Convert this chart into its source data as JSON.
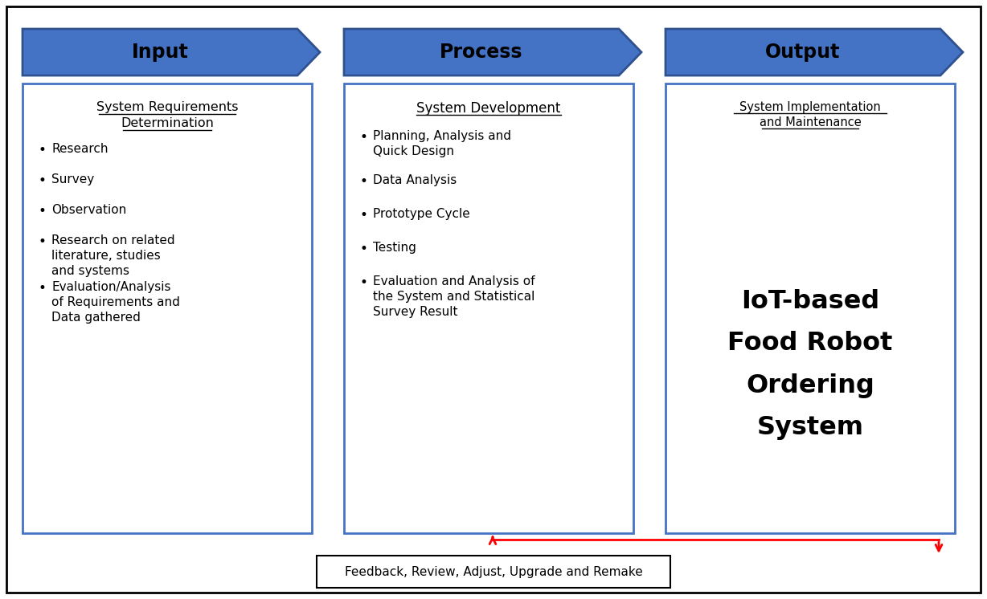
{
  "bg_color": "#ffffff",
  "outer_border_color": "#000000",
  "arrow_fill_color": "#4472C4",
  "arrow_edge_color": "#2F528F",
  "box_edge_color": "#4472C4",
  "box_fill_color": "#ffffff",
  "feedback_box_edge": "#000000",
  "red_arrow_color": "#FF0000",
  "headers": [
    "Input",
    "Process",
    "Output"
  ],
  "input_title_line1": "System Requirements",
  "input_title_line2": "Determination",
  "input_bullets": [
    "Research",
    "Survey",
    "Observation",
    "Research on related\nliterature, studies\nand systems",
    "Evaluation/Analysis\nof Requirements and\nData gathered"
  ],
  "process_title": "System Development",
  "process_bullets": [
    "Planning, Analysis and\nQuick Design",
    "Data Analysis",
    "Prototype Cycle",
    "Testing",
    "Evaluation and Analysis of\nthe System and Statistical\nSurvey Result"
  ],
  "output_title_line1": "System Implementation",
  "output_title_line2": "and Maintenance",
  "output_main_line1": "IoT-based",
  "output_main_line2": "Food Robot",
  "output_main_line3": "Ordering",
  "output_main_line4": "System",
  "feedback_text": "Feedback, Review, Adjust, Upgrade and Remake"
}
